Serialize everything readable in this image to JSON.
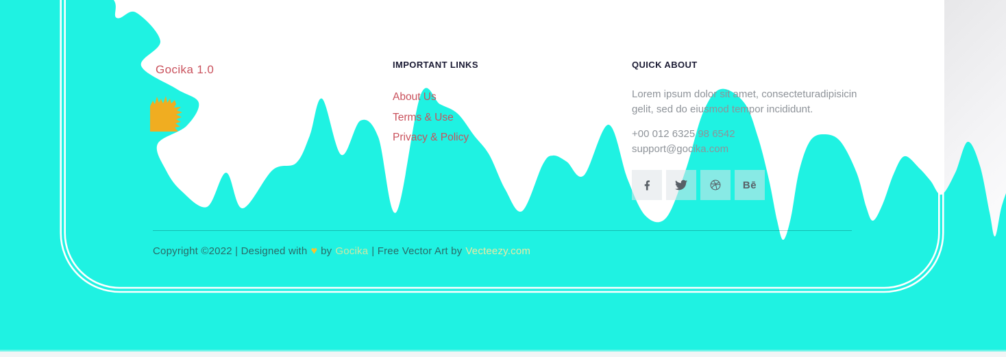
{
  "brand": {
    "logo_text": "Gocika 1.0",
    "splash_icon": "paint-splash"
  },
  "links_section": {
    "title": "IMPORTANT LINKS",
    "links": [
      "About Us",
      "Terms & Use",
      "Privacy & Policy"
    ]
  },
  "about_section": {
    "title": "QUICK ABOUT",
    "description": "Lorem ipsum dolor sit amet, consecteturadipisicin gelit, sed do eiusmod tempor incididunt.",
    "phone": "+00 012 6325 98 6542",
    "email": "support@gocika.com",
    "social_icons": [
      "facebook",
      "twitter",
      "dribbble",
      "behance"
    ],
    "behance_glyph": "Bē"
  },
  "copyright": {
    "text_before_heart": "Copyright ©2022 | Designed with",
    "heart": "♥",
    "text_after_heart": "by",
    "brand_link": "Gocika",
    "separator": "| Free Vector Art by",
    "vendor_link": "Vecteezy.com"
  },
  "colors": {
    "background_cyan": "#1ff2e2",
    "accent_red": "#c9515c",
    "splash_yellow": "#f0ad21",
    "heading_dark": "#1a1a33",
    "body_gray": "#8e9399",
    "copyright_teal": "#2a6a67",
    "copyright_brand_green": "#cfe7a4",
    "copyright_vendor_yellow": "#ece9a4",
    "heart_yellow": "#f5c531",
    "card_outline_white": "#ffffff"
  }
}
